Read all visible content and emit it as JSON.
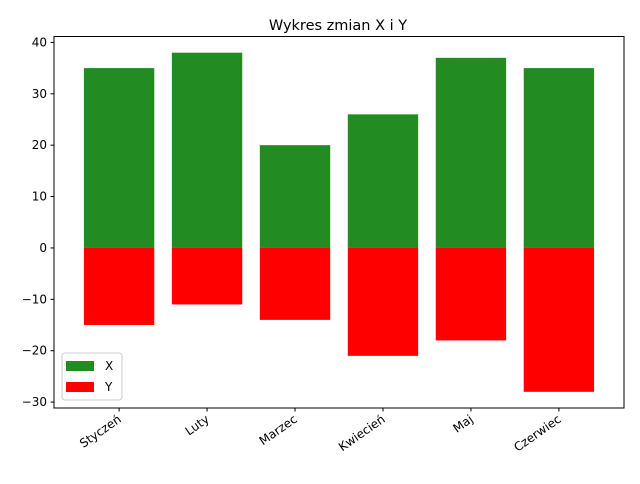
{
  "chart_data": {
    "type": "bar",
    "title": "Wykres zmian X i Y",
    "xlabel": "",
    "ylabel": "",
    "categories": [
      "Styczeń",
      "Luty",
      "Marzec",
      "Kwiecień",
      "Maj",
      "Czerwiec"
    ],
    "series": [
      {
        "name": "X",
        "color": "#228b22",
        "values": [
          35,
          38,
          20,
          26,
          37,
          35
        ]
      },
      {
        "name": "Y",
        "color": "#ff0000",
        "values": [
          -15,
          -11,
          -14,
          -21,
          -18,
          -28
        ]
      }
    ],
    "ylim": [
      -31.15,
      41.15
    ],
    "yticks": [
      -30,
      -20,
      -10,
      0,
      10,
      20,
      30,
      40
    ],
    "x_tick_rotation_deg": 35,
    "grid": false,
    "legend_position": "lower left"
  }
}
